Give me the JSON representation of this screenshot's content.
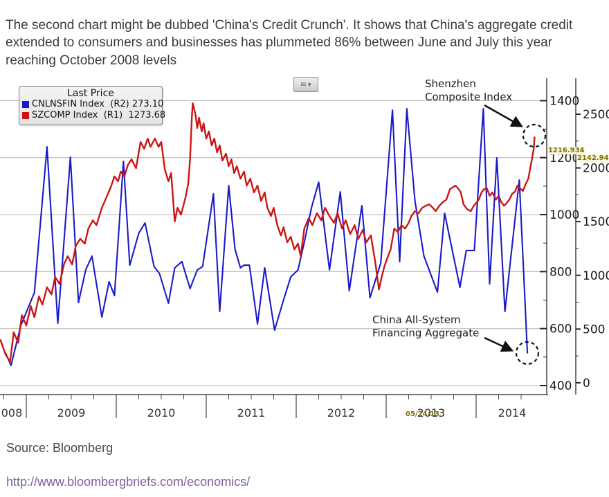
{
  "intro": {
    "text": "The second chart might be dubbed 'China's Credit Crunch'. It shows that China's aggregate credit extended to consumers and businesses has plummeted 86% between June and July this year reaching October 2008 levels"
  },
  "toolbar": {
    "envelope_icon": "✉",
    "caret_icon": "▾"
  },
  "legend": {
    "title": "Last Price",
    "items": [
      {
        "label": "CNLNSFIN Index  (R2) 273.10",
        "color": "#1a1acc"
      },
      {
        "label": "SZCOMP Index  (R1)  1273.68",
        "color": "#cc1414"
      }
    ]
  },
  "annotations": {
    "shenzhen": {
      "line1": "Shenzhen",
      "line2": "Composite Index"
    },
    "china": {
      "line1": "China All-System",
      "line2": "Financing Aggregate"
    }
  },
  "crosshair": {
    "date": "05/24/13",
    "r1_value": "1216.934",
    "r2_value": "2142.94"
  },
  "source": {
    "label": "Source: Bloomberg"
  },
  "link": {
    "text": "http://www.bloombergbriefs.com/economics/"
  },
  "chart_data": {
    "type": "line",
    "x_axis": {
      "labels": [
        "008",
        "2009",
        "2010",
        "2011",
        "2012",
        "2013",
        "2014"
      ],
      "domain": [
        2008.71,
        2014.78
      ]
    },
    "r1_axis": {
      "name": "SZCOMP right axis",
      "ticks": [
        400,
        600,
        800,
        1000,
        1200,
        1400
      ],
      "range": [
        368,
        1479
      ]
    },
    "r2_axis": {
      "name": "CNLNSFIN far right axis",
      "ticks": [
        0,
        500,
        1000,
        1500,
        2000,
        2500
      ],
      "range": [
        -110,
        2835
      ]
    },
    "grid": true,
    "legend_position": "top-left",
    "series": [
      {
        "name": "CNLNSFIN Index",
        "axis": "R2",
        "color": "#1a1acc",
        "last_price": 273.1,
        "points": [
          [
            2008.77,
            277
          ],
          [
            2008.83,
            161
          ],
          [
            2008.94,
            535
          ],
          [
            2009.09,
            838
          ],
          [
            2009.23,
            2197
          ],
          [
            2009.35,
            554
          ],
          [
            2009.49,
            2101
          ],
          [
            2009.58,
            747
          ],
          [
            2009.66,
            1050
          ],
          [
            2009.73,
            1179
          ],
          [
            2009.84,
            612
          ],
          [
            2009.92,
            941
          ],
          [
            2009.98,
            812
          ],
          [
            2010.08,
            2062
          ],
          [
            2010.15,
            1095
          ],
          [
            2010.25,
            1392
          ],
          [
            2010.32,
            1488
          ],
          [
            2010.42,
            1082
          ],
          [
            2010.48,
            1018
          ],
          [
            2010.58,
            741
          ],
          [
            2010.65,
            1070
          ],
          [
            2010.73,
            1128
          ],
          [
            2010.82,
            876
          ],
          [
            2010.9,
            1050
          ],
          [
            2010.96,
            1082
          ],
          [
            2011.08,
            1759
          ],
          [
            2011.15,
            664
          ],
          [
            2011.25,
            1836
          ],
          [
            2011.32,
            1243
          ],
          [
            2011.38,
            1070
          ],
          [
            2011.42,
            1095
          ],
          [
            2011.48,
            1095
          ],
          [
            2011.57,
            548
          ],
          [
            2011.65,
            1070
          ],
          [
            2011.76,
            490
          ],
          [
            2011.86,
            773
          ],
          [
            2011.94,
            986
          ],
          [
            2012.02,
            1050
          ],
          [
            2012.09,
            1308
          ],
          [
            2012.17,
            1630
          ],
          [
            2012.25,
            1868
          ],
          [
            2012.37,
            1050
          ],
          [
            2012.49,
            1778
          ],
          [
            2012.59,
            857
          ],
          [
            2012.73,
            1649
          ],
          [
            2012.82,
            792
          ],
          [
            2012.94,
            1115
          ],
          [
            2013.07,
            2538
          ],
          [
            2013.15,
            1128
          ],
          [
            2013.23,
            2551
          ],
          [
            2013.32,
            1694
          ],
          [
            2013.42,
            1179
          ],
          [
            2013.57,
            844
          ],
          [
            2013.65,
            1578
          ],
          [
            2013.82,
            889
          ],
          [
            2013.89,
            1231
          ],
          [
            2013.98,
            1231
          ],
          [
            2014.08,
            2551
          ],
          [
            2014.15,
            921
          ],
          [
            2014.23,
            2094
          ],
          [
            2014.32,
            664
          ],
          [
            2014.48,
            1888
          ],
          [
            2014.57,
            273.1
          ]
        ]
      },
      {
        "name": "SZCOMP Index",
        "axis": "R1",
        "color": "#cc1414",
        "last_price": 1273.68,
        "points": [
          [
            2008.71,
            562
          ],
          [
            2008.77,
            509
          ],
          [
            2008.82,
            484
          ],
          [
            2008.86,
            587
          ],
          [
            2008.91,
            550
          ],
          [
            2008.95,
            647
          ],
          [
            2009.0,
            611
          ],
          [
            2009.05,
            679
          ],
          [
            2009.09,
            640
          ],
          [
            2009.14,
            713
          ],
          [
            2009.18,
            684
          ],
          [
            2009.23,
            745
          ],
          [
            2009.28,
            720
          ],
          [
            2009.32,
            781
          ],
          [
            2009.37,
            757
          ],
          [
            2009.42,
            827
          ],
          [
            2009.46,
            854
          ],
          [
            2009.51,
            825
          ],
          [
            2009.55,
            890
          ],
          [
            2009.6,
            915
          ],
          [
            2009.65,
            898
          ],
          [
            2009.69,
            951
          ],
          [
            2009.74,
            980
          ],
          [
            2009.78,
            963
          ],
          [
            2009.84,
            1024
          ],
          [
            2009.88,
            1053
          ],
          [
            2009.94,
            1097
          ],
          [
            2009.98,
            1134
          ],
          [
            2010.02,
            1117
          ],
          [
            2010.05,
            1151
          ],
          [
            2010.09,
            1134
          ],
          [
            2010.13,
            1175
          ],
          [
            2010.17,
            1194
          ],
          [
            2010.22,
            1163
          ],
          [
            2010.27,
            1255
          ],
          [
            2010.31,
            1231
          ],
          [
            2010.35,
            1267
          ],
          [
            2010.38,
            1238
          ],
          [
            2010.43,
            1267
          ],
          [
            2010.47,
            1238
          ],
          [
            2010.5,
            1255
          ],
          [
            2010.54,
            1158
          ],
          [
            2010.58,
            1117
          ],
          [
            2010.61,
            1146
          ],
          [
            2010.65,
            976
          ],
          [
            2010.68,
            1024
          ],
          [
            2010.72,
            1000
          ],
          [
            2010.77,
            1061
          ],
          [
            2010.8,
            1109
          ],
          [
            2010.82,
            1194
          ],
          [
            2010.84,
            1340
          ],
          [
            2010.85,
            1391
          ],
          [
            2010.88,
            1352
          ],
          [
            2010.9,
            1304
          ],
          [
            2010.92,
            1340
          ],
          [
            2010.95,
            1292
          ],
          [
            2010.97,
            1321
          ],
          [
            2011.0,
            1267
          ],
          [
            2011.03,
            1292
          ],
          [
            2011.06,
            1243
          ],
          [
            2011.09,
            1267
          ],
          [
            2011.12,
            1219
          ],
          [
            2011.15,
            1243
          ],
          [
            2011.18,
            1190
          ],
          [
            2011.22,
            1214
          ],
          [
            2011.25,
            1170
          ],
          [
            2011.28,
            1194
          ],
          [
            2011.31,
            1146
          ],
          [
            2011.34,
            1170
          ],
          [
            2011.38,
            1126
          ],
          [
            2011.42,
            1151
          ],
          [
            2011.45,
            1102
          ],
          [
            2011.49,
            1126
          ],
          [
            2011.53,
            1078
          ],
          [
            2011.57,
            1102
          ],
          [
            2011.61,
            1048
          ],
          [
            2011.65,
            1078
          ],
          [
            2011.68,
            1024
          ],
          [
            2011.72,
            995
          ],
          [
            2011.75,
            1024
          ],
          [
            2011.79,
            963
          ],
          [
            2011.83,
            927
          ],
          [
            2011.86,
            956
          ],
          [
            2011.9,
            903
          ],
          [
            2011.94,
            922
          ],
          [
            2011.98,
            878
          ],
          [
            2012.02,
            898
          ],
          [
            2012.05,
            854
          ],
          [
            2012.09,
            951
          ],
          [
            2012.14,
            988
          ],
          [
            2012.18,
            963
          ],
          [
            2012.23,
            1005
          ],
          [
            2012.28,
            980
          ],
          [
            2012.32,
            1024
          ],
          [
            2012.37,
            995
          ],
          [
            2012.42,
            971
          ],
          [
            2012.46,
            1005
          ],
          [
            2012.51,
            951
          ],
          [
            2012.55,
            980
          ],
          [
            2012.6,
            932
          ],
          [
            2012.65,
            963
          ],
          [
            2012.69,
            915
          ],
          [
            2012.74,
            946
          ],
          [
            2012.78,
            903
          ],
          [
            2012.83,
            927
          ],
          [
            2012.88,
            830
          ],
          [
            2012.92,
            737
          ],
          [
            2012.95,
            781
          ],
          [
            2012.98,
            818
          ],
          [
            2013.02,
            854
          ],
          [
            2013.05,
            878
          ],
          [
            2013.09,
            951
          ],
          [
            2013.13,
            939
          ],
          [
            2013.17,
            963
          ],
          [
            2013.21,
            951
          ],
          [
            2013.25,
            971
          ],
          [
            2013.28,
            995
          ],
          [
            2013.32,
            1012
          ],
          [
            2013.36,
            1005
          ],
          [
            2013.4,
            1024
          ],
          [
            2013.44,
            1031
          ],
          [
            2013.48,
            1036
          ],
          [
            2013.52,
            1024
          ],
          [
            2013.55,
            1012
          ],
          [
            2013.59,
            1031
          ],
          [
            2013.63,
            1044
          ],
          [
            2013.67,
            1053
          ],
          [
            2013.71,
            1090
          ],
          [
            2013.75,
            1097
          ],
          [
            2013.77,
            1102
          ],
          [
            2013.8,
            1092
          ],
          [
            2013.83,
            1078
          ],
          [
            2013.86,
            1036
          ],
          [
            2013.9,
            1019
          ],
          [
            2013.94,
            1012
          ],
          [
            2013.97,
            1029
          ],
          [
            2014.0,
            1041
          ],
          [
            2014.03,
            1053
          ],
          [
            2014.06,
            1078
          ],
          [
            2014.09,
            1090
          ],
          [
            2014.12,
            1092
          ],
          [
            2014.15,
            1066
          ],
          [
            2014.18,
            1078
          ],
          [
            2014.22,
            1053
          ],
          [
            2014.25,
            1066
          ],
          [
            2014.28,
            1044
          ],
          [
            2014.31,
            1031
          ],
          [
            2014.34,
            1041
          ],
          [
            2014.37,
            1053
          ],
          [
            2014.4,
            1073
          ],
          [
            2014.43,
            1080
          ],
          [
            2014.46,
            1102
          ],
          [
            2014.49,
            1092
          ],
          [
            2014.52,
            1083
          ],
          [
            2014.55,
            1107
          ],
          [
            2014.58,
            1126
          ],
          [
            2014.62,
            1194
          ],
          [
            2014.64,
            1231
          ],
          [
            2014.65,
            1273.68
          ]
        ]
      }
    ]
  }
}
